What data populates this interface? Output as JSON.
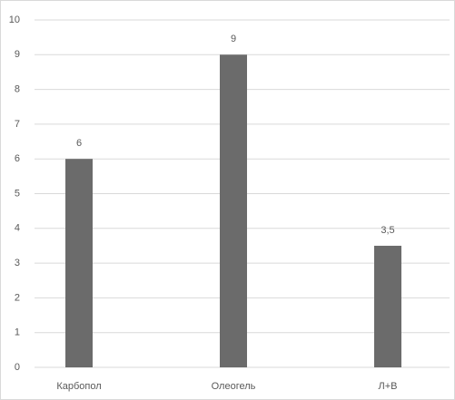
{
  "chart_data": {
    "type": "bar",
    "categories": [
      "Карбопол",
      "Олеогель",
      "Л+В"
    ],
    "values": [
      6,
      9,
      3.5
    ],
    "value_labels": [
      "6",
      "9",
      "3,5"
    ],
    "color": "#6b6b6b",
    "ylim": [
      0,
      10
    ],
    "yticks": [
      0,
      1,
      2,
      3,
      4,
      5,
      6,
      7,
      8,
      9,
      10
    ],
    "grid": true
  }
}
